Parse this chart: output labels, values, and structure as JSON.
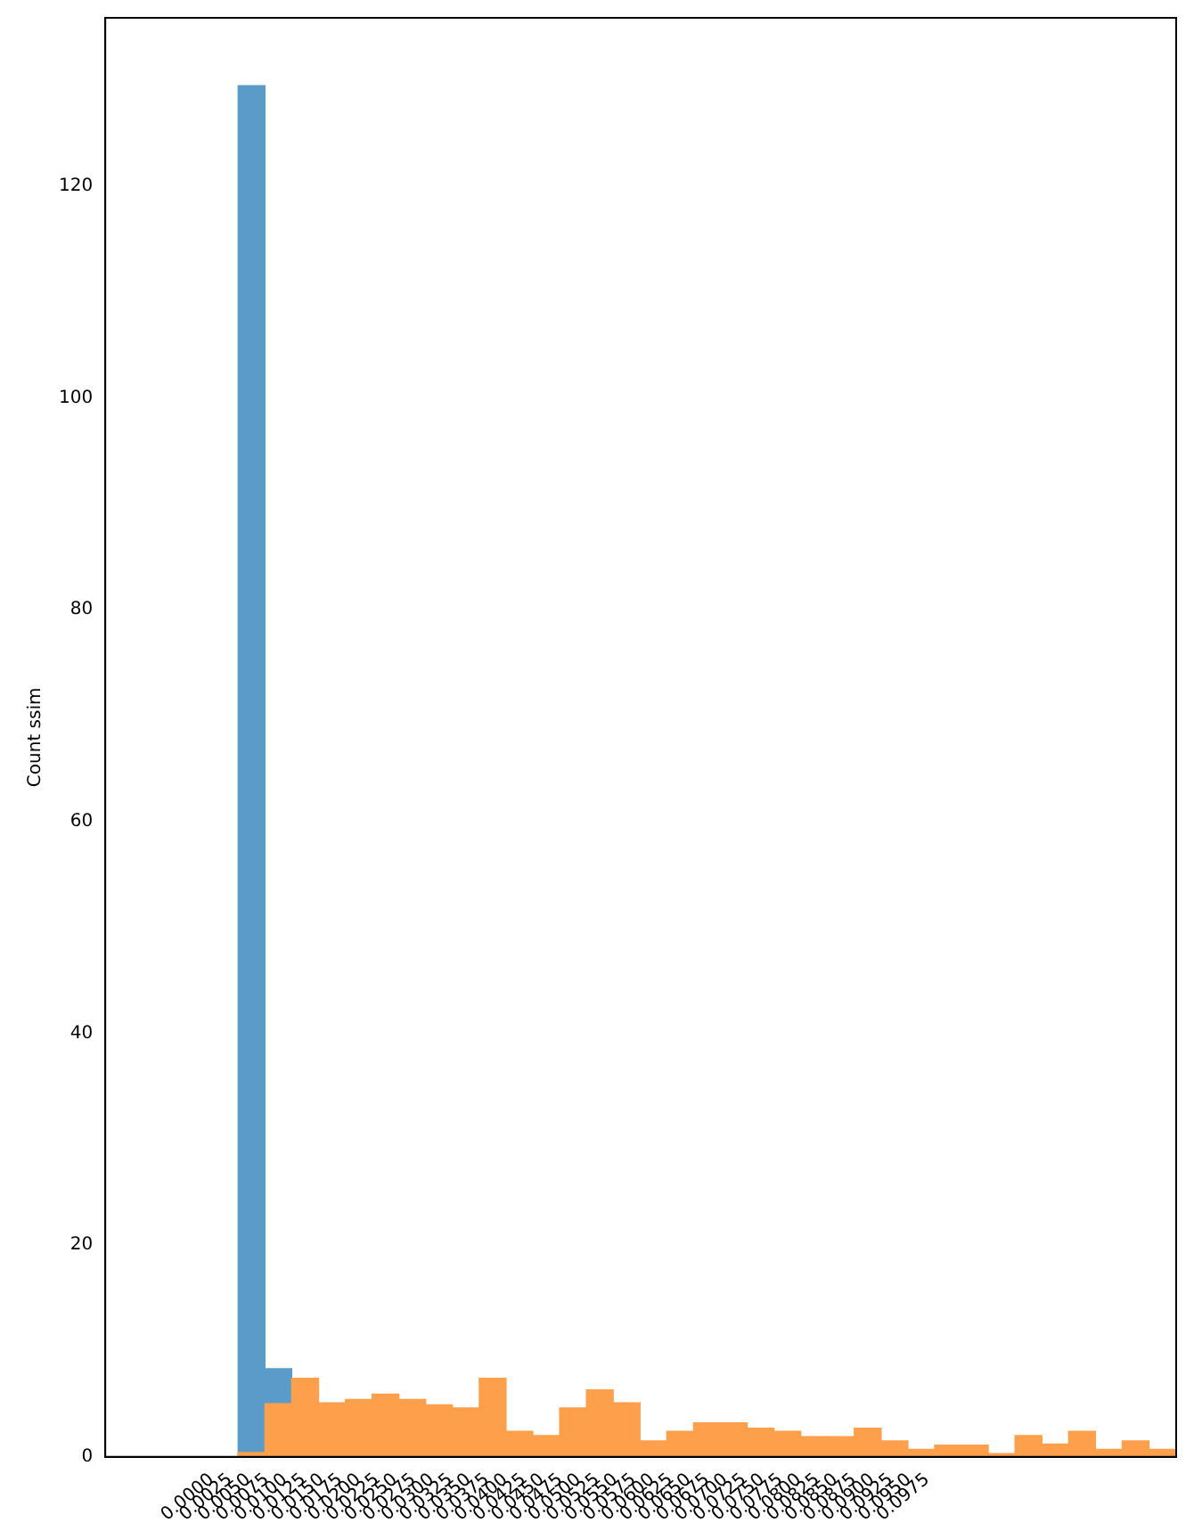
{
  "chart_data": {
    "type": "histogram",
    "ylabel": "Count ssim",
    "bins": [
      0.0036,
      0.00725,
      0.0109,
      0.01455,
      0.0182,
      0.02185,
      0.0255,
      0.02915,
      0.0328,
      0.03645,
      0.0401,
      0.04375,
      0.0474,
      0.05105,
      0.0547,
      0.05835,
      0.062,
      0.06565,
      0.0693,
      0.07295,
      0.0766,
      0.08025,
      0.0839,
      0.08755,
      0.0912,
      0.09485,
      0.0985,
      0.10215,
      0.1058,
      0.10945,
      0.1131,
      0.11675,
      0.1204,
      0.12405,
      0.1277,
      0.13135
    ],
    "series": [
      {
        "color": "#5b9bc9",
        "values": [
          129.5,
          8.3,
          null,
          null,
          null,
          null,
          null,
          null,
          null,
          null,
          null,
          null,
          null,
          null,
          null,
          null,
          null,
          null,
          null,
          null,
          null,
          null,
          null,
          null,
          null,
          null,
          null,
          null,
          null,
          null,
          null,
          null,
          null,
          null,
          null
        ]
      },
      {
        "color": "#fe9f4c",
        "values": [
          0.4,
          5,
          7.4,
          5.1,
          5.4,
          5.9,
          5.4,
          4.9,
          4.6,
          7.4,
          2.4,
          2,
          4.6,
          6.3,
          5.1,
          1.5,
          2.4,
          3.2,
          3.2,
          2.7,
          2.4,
          1.9,
          1.9,
          2.7,
          1.5,
          0.7,
          1.1,
          1.1,
          0.3,
          2,
          1.2,
          2.4,
          0.7,
          1.5,
          0.7
        ]
      }
    ],
    "xlim": [
      -0.0145,
      0.1314
    ],
    "xticks": [
      {
        "value": 0,
        "label": "0.0000"
      },
      {
        "value": 0.0025,
        "label": "0.0025"
      },
      {
        "value": 0.005,
        "label": "0.0050"
      },
      {
        "value": 0.0075,
        "label": "0.0075"
      },
      {
        "value": 0.01,
        "label": "0.0100"
      },
      {
        "value": 0.0125,
        "label": "0.0125"
      },
      {
        "value": 0.015,
        "label": "0.0150"
      },
      {
        "value": 0.0175,
        "label": "0.0175"
      },
      {
        "value": 0.02,
        "label": "0.0200"
      },
      {
        "value": 0.0225,
        "label": "0.0225"
      },
      {
        "value": 0.025,
        "label": "0.0250"
      },
      {
        "value": 0.0275,
        "label": "0.0275"
      },
      {
        "value": 0.03,
        "label": "0.0300"
      },
      {
        "value": 0.0325,
        "label": "0.0325"
      },
      {
        "value": 0.035,
        "label": "0.0350"
      },
      {
        "value": 0.0375,
        "label": "0.0375"
      },
      {
        "value": 0.04,
        "label": "0.0400"
      },
      {
        "value": 0.0425,
        "label": "0.0425"
      },
      {
        "value": 0.045,
        "label": "0.0450"
      },
      {
        "value": 0.0475,
        "label": "0.0475"
      },
      {
        "value": 0.05,
        "label": "0.0500"
      },
      {
        "value": 0.0525,
        "label": "0.0525"
      },
      {
        "value": 0.055,
        "label": "0.0550"
      },
      {
        "value": 0.0575,
        "label": "0.0575"
      },
      {
        "value": 0.06,
        "label": "0.0600"
      },
      {
        "value": 0.0625,
        "label": "0.0625"
      },
      {
        "value": 0.065,
        "label": "0.0650"
      },
      {
        "value": 0.0675,
        "label": "0.0675"
      },
      {
        "value": 0.07,
        "label": "0.0700"
      },
      {
        "value": 0.0725,
        "label": "0.0725"
      },
      {
        "value": 0.075,
        "label": "0.0750"
      },
      {
        "value": 0.0775,
        "label": "0.0775"
      },
      {
        "value": 0.08,
        "label": "0.0800"
      },
      {
        "value": 0.0825,
        "label": "0.0825"
      },
      {
        "value": 0.085,
        "label": "0.0850"
      },
      {
        "value": 0.0875,
        "label": "0.0875"
      },
      {
        "value": 0.09,
        "label": "0.0900"
      },
      {
        "value": 0.0925,
        "label": "0.0925"
      },
      {
        "value": 0.095,
        "label": "0.0950"
      },
      {
        "value": 0.0975,
        "label": "0.0975"
      }
    ],
    "ylim": [
      0,
      135.9
    ],
    "yticks": [
      0,
      20,
      40,
      60,
      80,
      100,
      120
    ],
    "grid": false,
    "legend": false
  }
}
